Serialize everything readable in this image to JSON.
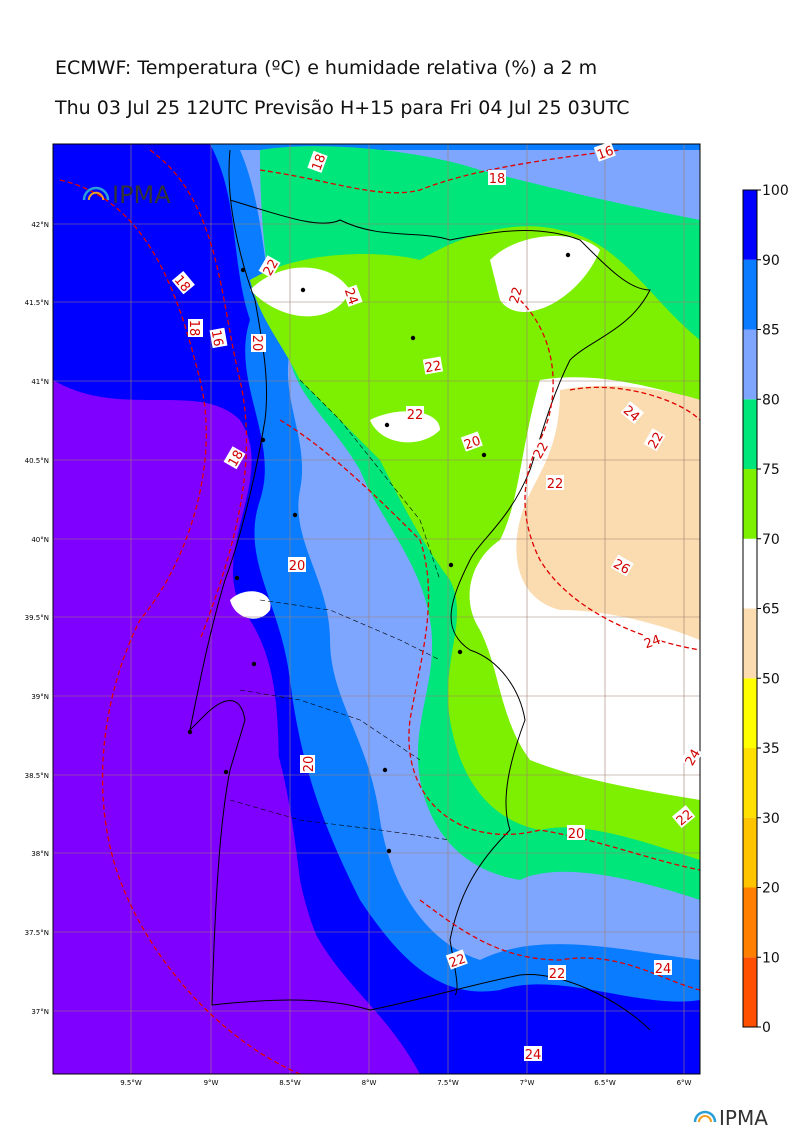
{
  "header": {
    "title": "ECMWF: Temperatura (ºC) e humidade relativa (%) a 2 m",
    "subtitle": "Thu 03 Jul 25 12UTC Previsão H+15 para Fri 04 Jul 25 03UTC"
  },
  "map": {
    "lat_labels": [
      "42°N",
      "41.5°N",
      "41°N",
      "40.5°N",
      "40°N",
      "39.5°N",
      "39°N",
      "38.5°N",
      "38°N",
      "37.5°N",
      "37°N"
    ],
    "lon_labels": [
      "9.5°W",
      "9°W",
      "8.5°W",
      "8°W",
      "7.5°W",
      "7°W",
      "6.5°W",
      "6°W"
    ],
    "contour_labels": [
      "18",
      "16",
      "18",
      "22",
      "24",
      "18",
      "18",
      "16",
      "20",
      "22",
      "22",
      "22",
      "24",
      "20",
      "22",
      "18",
      "22",
      "22",
      "20",
      "26",
      "24",
      "20",
      "24",
      "22",
      "20",
      "22",
      "22",
      "24",
      "24"
    ],
    "logo": "IPMA"
  },
  "colorbar": {
    "ticks": [
      0,
      10,
      20,
      30,
      35,
      50,
      65,
      70,
      75,
      80,
      85,
      90,
      100
    ],
    "colors": [
      "#ff4f00",
      "#ff8000",
      "#ffc400",
      "#ffe000",
      "#ffff00",
      "#fadcb0",
      "#ffffff",
      "#7cf000",
      "#00e67a",
      "#7ea6ff",
      "#0a7cff",
      "#0000ff",
      "#8000ff"
    ]
  },
  "footer_logo": "IPMA"
}
